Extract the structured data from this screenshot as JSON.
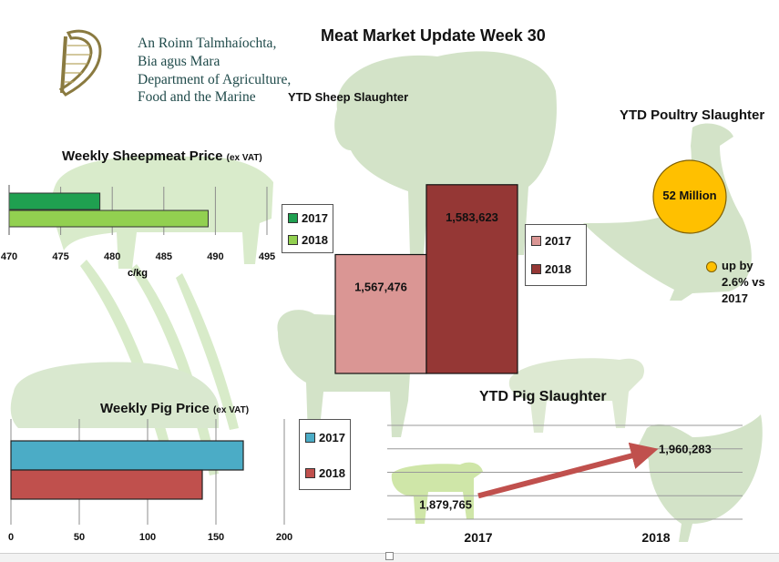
{
  "page_title": "Meat Market Update Week 30",
  "logo": {
    "lines": [
      "An Roinn Talmhaíochta,",
      "Bia agus Mara",
      "Department of Agriculture,",
      "Food and the Marine"
    ]
  },
  "colors": {
    "sheep_2017": "#1fa050",
    "sheep_2018": "#92d050",
    "slaughter_2017": "#da9694",
    "slaughter_2018": "#953735",
    "pig_2017": "#4bacc6",
    "pig_2018": "#c0504d",
    "poultry": "#ffc000",
    "silhouette": "#cfe6c0"
  },
  "sheepmeat_price": {
    "title": "Weekly Sheepmeat Price",
    "title_suffix": "(ex VAT)",
    "xlabel": "c/kg",
    "legend": [
      "2017",
      "2018"
    ]
  },
  "sheep_slaughter": {
    "title": "YTD Sheep Slaughter",
    "labels": [
      "1,567,476",
      "1,583,623"
    ],
    "legend": [
      "2017",
      "2018"
    ]
  },
  "poultry": {
    "title": "YTD Poultry Slaughter",
    "bubble_label": "52 Million",
    "note_lines": [
      "up by",
      "2.6% vs",
      "2017"
    ]
  },
  "pig_price": {
    "title": "Weekly Pig Price",
    "title_suffix": "(ex VAT)",
    "legend": [
      "2017",
      "2018"
    ]
  },
  "pig_slaughter": {
    "title": "YTD Pig Slaughter",
    "labels": [
      "1,879,765",
      "1,960,283"
    ]
  },
  "chart_data": [
    {
      "type": "bar",
      "orientation": "horizontal",
      "title": "Weekly Sheepmeat Price (ex VAT)",
      "xlabel": "c/kg",
      "categories": [
        ""
      ],
      "series": [
        {
          "name": "2017",
          "values": [
            478.8
          ]
        },
        {
          "name": "2018",
          "values": [
            489.3
          ]
        }
      ],
      "xlim": [
        470,
        495
      ],
      "ticks": [
        "470",
        "475",
        "480",
        "485",
        "490",
        "495"
      ],
      "grid": true,
      "legend": "right"
    },
    {
      "type": "bar",
      "title": "YTD Sheep Slaughter",
      "categories": [
        "2017",
        "2018"
      ],
      "values": [
        1567476,
        1583623
      ],
      "ylim": [
        1540000,
        1600000
      ],
      "legend": "right"
    },
    {
      "type": "bar",
      "orientation": "horizontal",
      "title": "Weekly Pig Price (ex VAT)",
      "categories": [
        ""
      ],
      "series": [
        {
          "name": "2017",
          "values": [
            170
          ]
        },
        {
          "name": "2018",
          "values": [
            140
          ]
        }
      ],
      "xlim": [
        0,
        200
      ],
      "ticks": [
        "0",
        "50",
        "100",
        "150",
        "200"
      ],
      "grid": true,
      "legend": "right"
    },
    {
      "type": "line",
      "title": "YTD Pig Slaughter",
      "categories": [
        "2017",
        "2018"
      ],
      "values": [
        1879765,
        1960283
      ],
      "ylim": [
        1840000,
        2000000
      ],
      "grid": true
    }
  ]
}
